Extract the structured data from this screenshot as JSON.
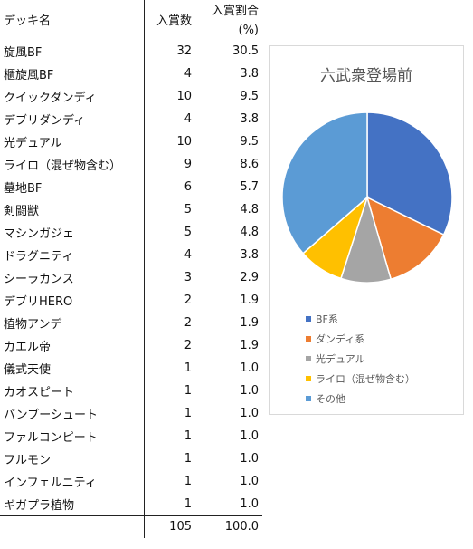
{
  "table": {
    "header": {
      "name": "デッキ名",
      "count": "入賞数",
      "pct_line1": "入賞割合",
      "pct_line2": "(%)"
    },
    "rows": [
      {
        "name": "旋風BF",
        "count": "32",
        "pct": "30.5"
      },
      {
        "name": "櫃旋風BF",
        "count": "4",
        "pct": "3.8"
      },
      {
        "name": "クイックダンディ",
        "count": "10",
        "pct": "9.5"
      },
      {
        "name": "デブリダンディ",
        "count": "4",
        "pct": "3.8"
      },
      {
        "name": "光デュアル",
        "count": "10",
        "pct": "9.5"
      },
      {
        "name": "ライロ（混ぜ物含む）",
        "count": "9",
        "pct": "8.6"
      },
      {
        "name": "墓地BF",
        "count": "6",
        "pct": "5.7"
      },
      {
        "name": "剣闘獣",
        "count": "5",
        "pct": "4.8"
      },
      {
        "name": "マシンガジェ",
        "count": "5",
        "pct": "4.8"
      },
      {
        "name": "ドラグニティ",
        "count": "4",
        "pct": "3.8"
      },
      {
        "name": "シーラカンス",
        "count": "3",
        "pct": "2.9"
      },
      {
        "name": "デブリHERO",
        "count": "2",
        "pct": "1.9"
      },
      {
        "name": "植物アンデ",
        "count": "2",
        "pct": "1.9"
      },
      {
        "name": "カエル帝",
        "count": "2",
        "pct": "1.9"
      },
      {
        "name": "儀式天使",
        "count": "1",
        "pct": "1.0"
      },
      {
        "name": "カオスピート",
        "count": "1",
        "pct": "1.0"
      },
      {
        "name": "バンブーシュート",
        "count": "1",
        "pct": "1.0"
      },
      {
        "name": "ファルコンピート",
        "count": "1",
        "pct": "1.0"
      },
      {
        "name": "フルモン",
        "count": "1",
        "pct": "1.0"
      },
      {
        "name": "インフェルニティ",
        "count": "1",
        "pct": "1.0"
      },
      {
        "name": "ギガプラ植物",
        "count": "1",
        "pct": "1.0"
      }
    ],
    "total": {
      "count": "105",
      "pct": "100.0"
    }
  },
  "chart_data": {
    "type": "pie",
    "title": "六武衆登場前",
    "slices": [
      {
        "label": "BF系",
        "value": 32.2,
        "color": "#4472c4"
      },
      {
        "label": "ダンディ系",
        "value": 13.3,
        "color": "#ed7d31"
      },
      {
        "label": "光デュアル",
        "value": 9.5,
        "color": "#a5a5a5"
      },
      {
        "label": "ライロ（混ぜ物含む）",
        "value": 8.6,
        "color": "#ffc000"
      },
      {
        "label": "その他",
        "value": 36.4,
        "color": "#5b9bd5"
      }
    ],
    "legend_position": "bottom"
  }
}
